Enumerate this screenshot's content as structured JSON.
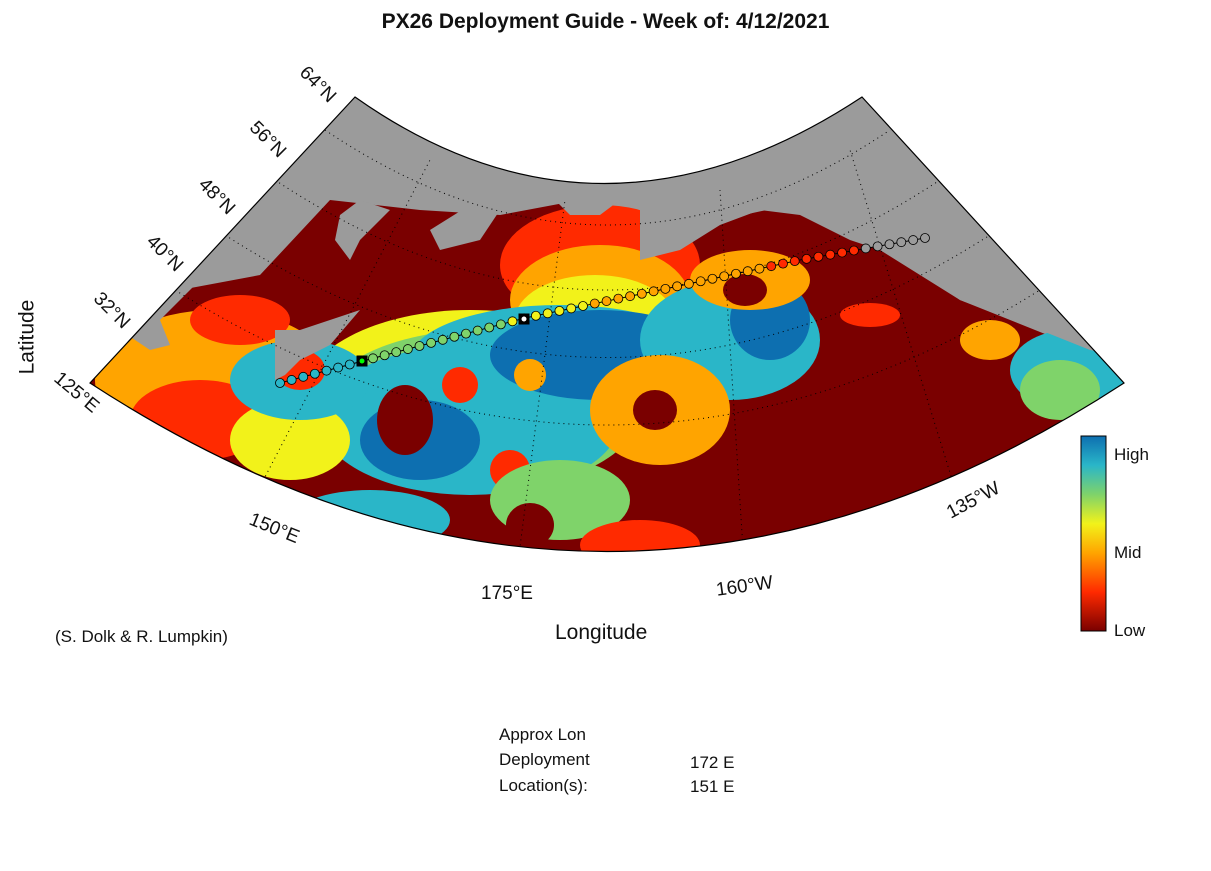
{
  "title": "PX26 Deployment Guide - Week of: 4/12/2021",
  "axes": {
    "xlabel": "Longitude",
    "ylabel": "Latitude",
    "lat_ticks": [
      "64°N",
      "56°N",
      "48°N",
      "40°N",
      "32°N"
    ],
    "lon_ticks": [
      "125°E",
      "150°E",
      "175°E",
      "160°W",
      "135°W"
    ]
  },
  "colorbar": {
    "labels": [
      "High",
      "Mid",
      "Low"
    ],
    "colors": [
      "#0d6fb0",
      "#2ab6c8",
      "#7fd36a",
      "#f2f21a",
      "#ffa400",
      "#ff2a00",
      "#7a0000"
    ]
  },
  "credit": "(S. Dolk & R. Lumpkin)",
  "deployment": {
    "header": "Approx Lon",
    "row1_label": "Deployment",
    "row2_label": "Location(s):",
    "values": [
      "172 E",
      "151 E"
    ]
  },
  "colors": {
    "land": "#9b9b9b",
    "low": "#7a0000",
    "high": "#0d6fb0",
    "marker_current": "#00ff00"
  }
}
